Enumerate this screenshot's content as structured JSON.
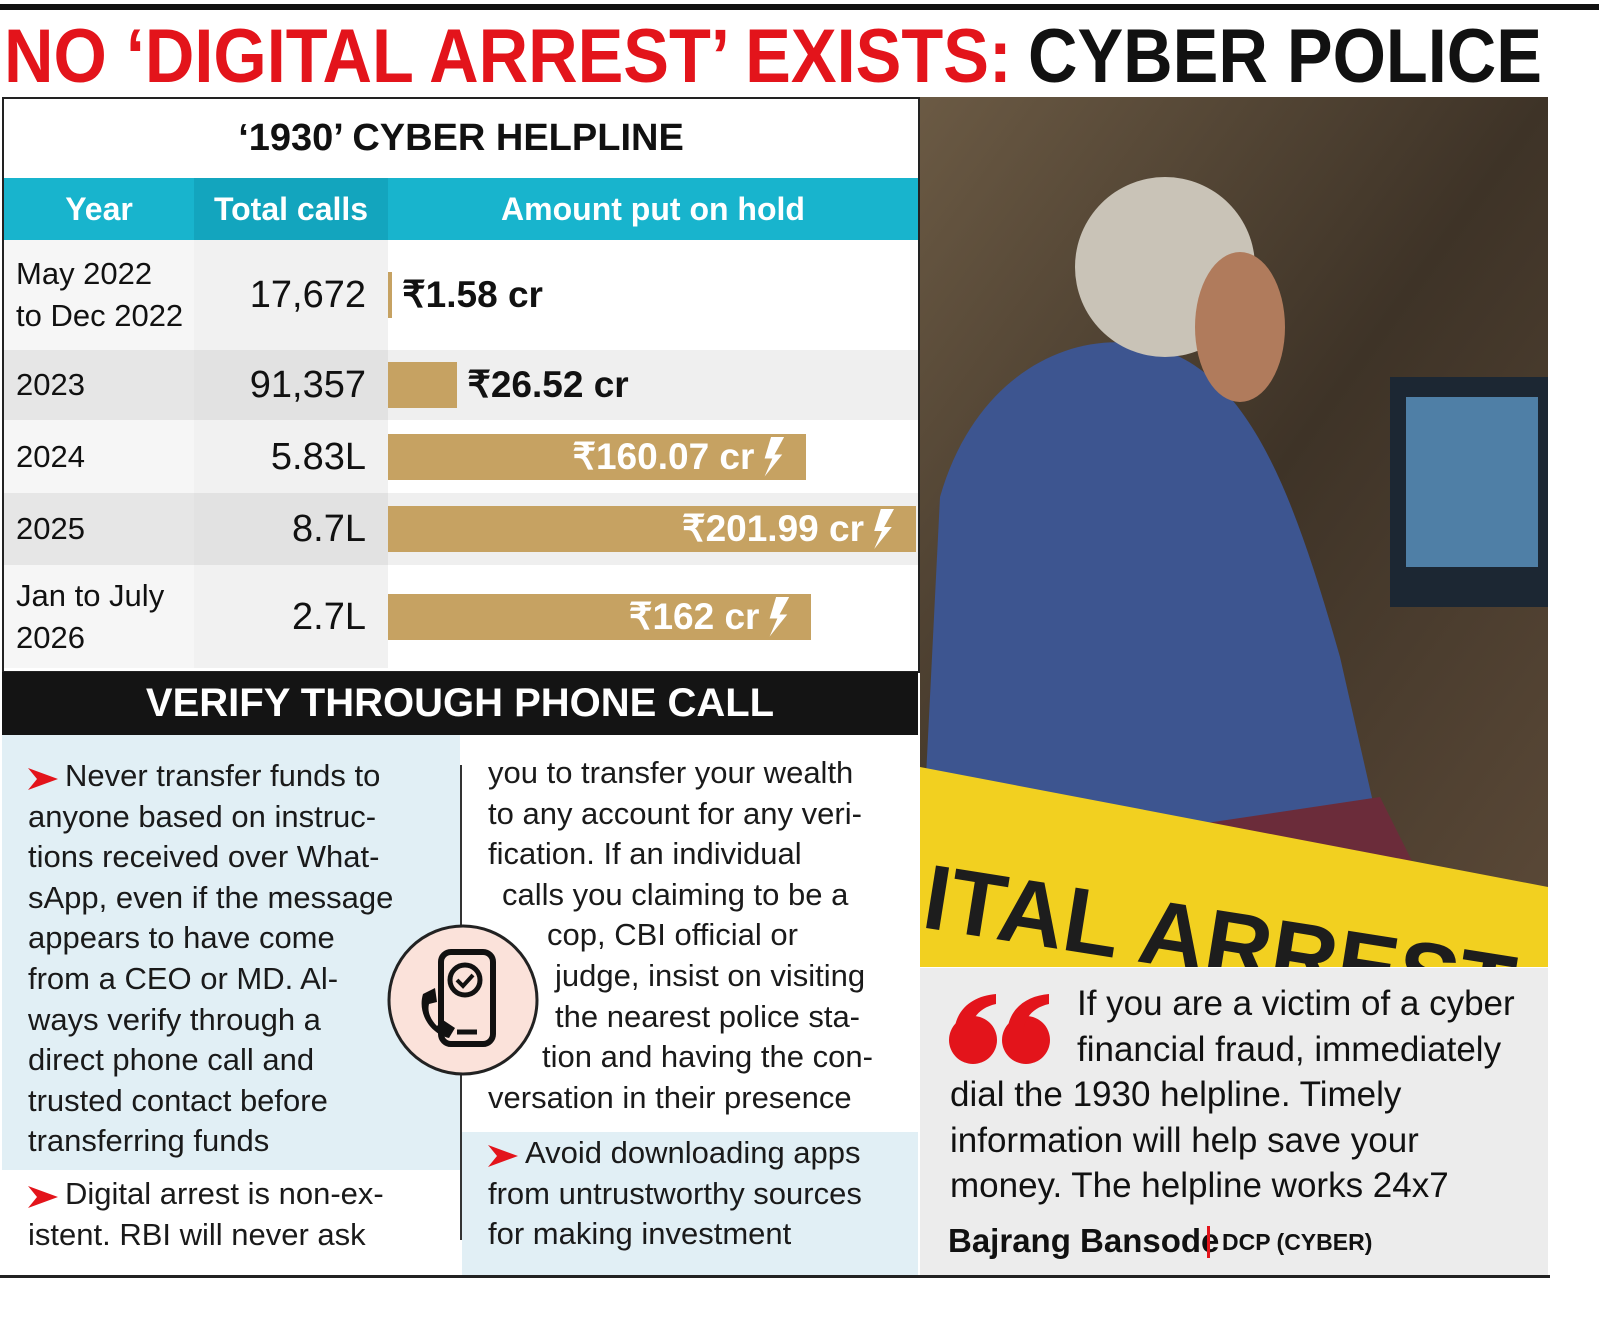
{
  "header": {
    "title_red": "NO ‘DIGITAL ARREST’ EXISTS:",
    "title_black": "CYBER POLICE"
  },
  "table": {
    "title": "‘1930’ CYBER HELPLINE",
    "columns": [
      "Year",
      "Total calls",
      "Amount put on hold"
    ],
    "bar_color": "#c6a262",
    "rows": [
      {
        "year": [
          "May 2022",
          "to Dec 2022"
        ],
        "calls": "17,672",
        "amount": 1.58,
        "amount_label": "₹1.58 cr"
      },
      {
        "year": [
          "2023"
        ],
        "calls": "91,357",
        "amount": 26.52,
        "amount_label": "₹26.52 cr"
      },
      {
        "year": [
          "2024"
        ],
        "calls": "5.83L",
        "amount": 160.07,
        "amount_label": "₹160.07 cr"
      },
      {
        "year": [
          "2025"
        ],
        "calls": "8.7L",
        "amount": 201.99,
        "amount_label": "₹201.99 cr"
      },
      {
        "year": [
          "Jan to July",
          "2026"
        ],
        "calls": "2.7L",
        "amount": 162,
        "amount_label": "₹162 cr"
      }
    ]
  },
  "tips": {
    "title": "VERIFY THROUGH PHONE CALL",
    "bullet_1": [
      "Never transfer funds to",
      "anyone based on instruc-",
      "tions received over What-",
      "sApp, even if the message",
      "appears to have come",
      "from a CEO or MD. Al-",
      "ways verify through a",
      "direct phone call and",
      "trusted contact before",
      "transferring funds"
    ],
    "bullet_2": [
      "Digital arrest is non-ex-",
      "istent. RBI will never ask"
    ],
    "bullet_2_cont": [
      "you to transfer your wealth",
      "to any account for any veri-",
      "fication. If an individual",
      "calls you claiming to be a",
      "cop, CBI official or",
      "judge, insist on visiting",
      "the nearest police sta-",
      "tion and having the con-",
      "versation in their presence"
    ],
    "bullet_3": [
      "Avoid downloading apps",
      "from untrustworthy sources",
      "for making investment"
    ]
  },
  "photo": {
    "tape_text": "ITAL ARREST"
  },
  "quote": {
    "lines": [
      "If you are a victim of a cyber",
      "financial fraud, immediately",
      "dial the 1930 helpline. Timely",
      "information will help save your",
      "money. The helpline works 24x7"
    ],
    "name": "Bajrang Bansode",
    "role": "DCP (CYBER)"
  }
}
